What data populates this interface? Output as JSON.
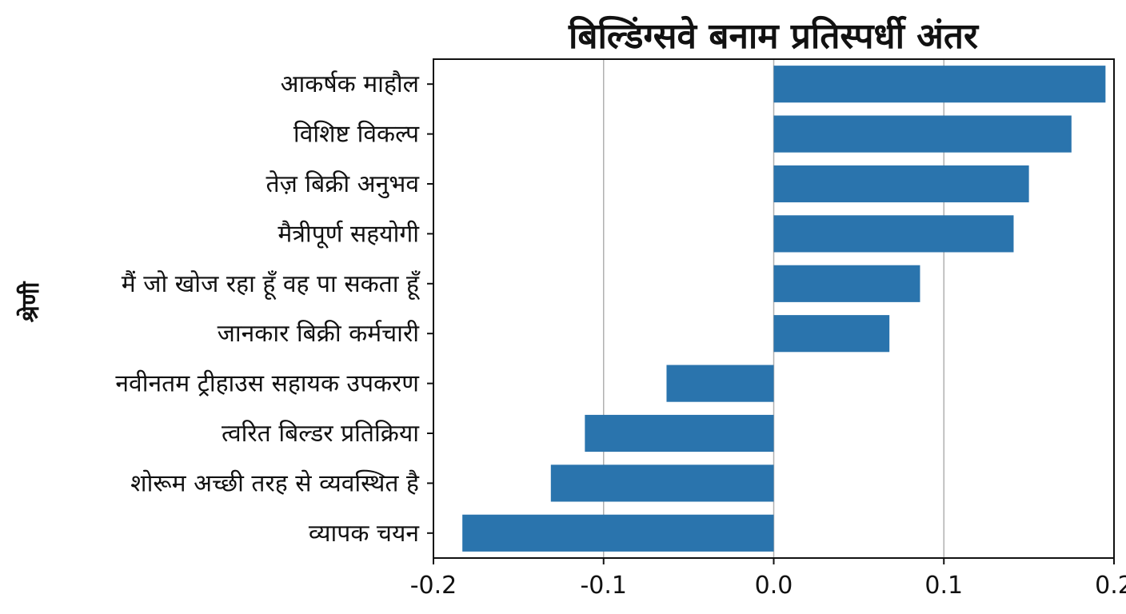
{
  "chart_data": {
    "type": "bar",
    "orientation": "horizontal",
    "title": "बिल्डिंग्सवे बनाम प्रतिस्पर्धी अंतर",
    "xlabel": "",
    "ylabel": "श्रेणी",
    "xlim": [
      -0.2,
      0.2
    ],
    "xticks": [
      "-0.2",
      "-0.1",
      "0.0",
      "0.1",
      "0.2"
    ],
    "xtick_values": [
      -0.2,
      -0.1,
      0.0,
      0.1,
      0.2
    ],
    "grid": "vertical",
    "bar_color": "#2a74ad",
    "categories": [
      "आकर्षक माहौल",
      "विशिष्ट विकल्प",
      "तेज़ बिक्री अनुभव",
      "मैत्रीपूर्ण सहयोगी",
      "मैं जो खोज रहा हूँ वह पा सकता हूँ",
      "जानकार बिक्री कर्मचारी",
      "नवीनतम ट्रीहाउस सहायक उपकरण",
      "त्वरित बिल्डर प्रतिक्रिया",
      "शोरूम अच्छी तरह से व्यवस्थित है",
      "व्यापक चयन"
    ],
    "values": [
      0.195,
      0.175,
      0.15,
      0.141,
      0.086,
      0.068,
      -0.063,
      -0.111,
      -0.131,
      -0.183
    ]
  }
}
